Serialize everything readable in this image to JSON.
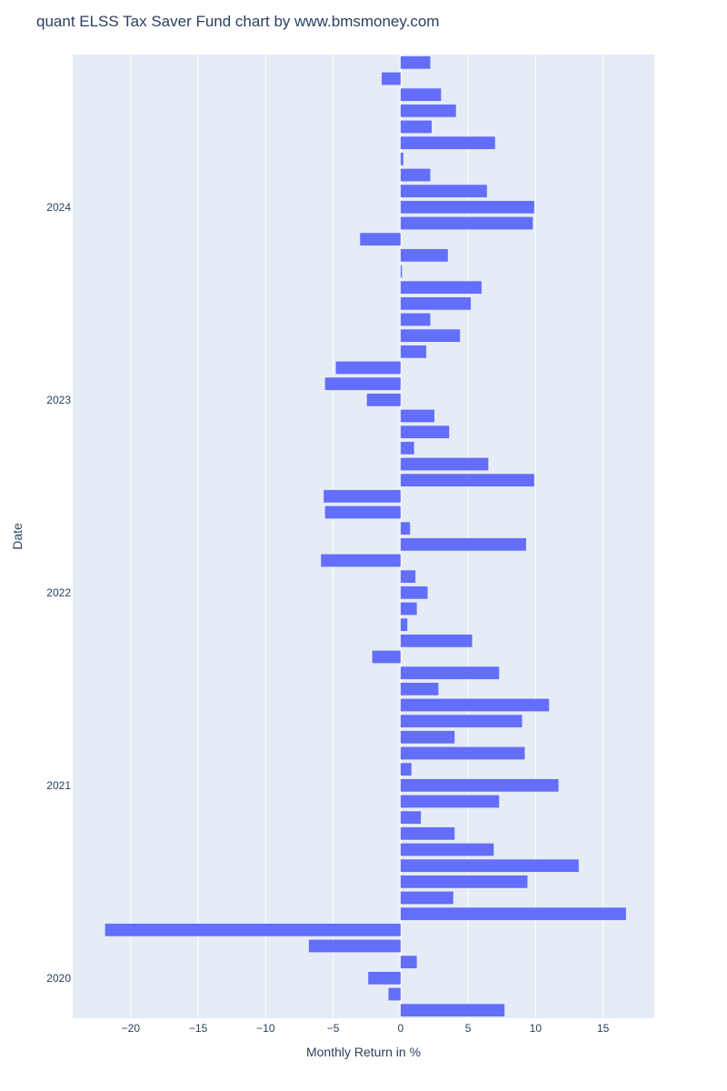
{
  "chart_data": {
    "type": "bar",
    "orientation": "horizontal",
    "title": "quant ELSS Tax Saver Fund  chart by www.bmsmoney.com",
    "xlabel": "Monthly Return in %",
    "ylabel": "Date",
    "xlim": [
      -24.3,
      18.8
    ],
    "x_ticks": [
      -20,
      -15,
      -10,
      -5,
      0,
      5,
      10,
      15
    ],
    "x_tick_labels": [
      "−20",
      "−15",
      "−10",
      "−5",
      "0",
      "5",
      "10",
      "15"
    ],
    "y_ticks": [
      "2020",
      "2021",
      "2022",
      "2023",
      "2024"
    ],
    "grid": true,
    "bar_color": "#636efa",
    "plot_bg": "#e5ecf6",
    "series": [
      {
        "name": "Monthly Return",
        "dates": [
          "2019-11",
          "2019-12",
          "2020-01",
          "2020-02",
          "2020-03",
          "2020-04",
          "2020-05",
          "2020-06",
          "2020-07",
          "2020-08",
          "2020-09",
          "2020-10",
          "2020-11",
          "2020-12",
          "2021-01",
          "2021-02",
          "2021-03",
          "2021-04",
          "2021-05",
          "2021-06",
          "2021-07",
          "2021-08",
          "2021-09",
          "2021-10",
          "2021-11",
          "2021-12",
          "2022-01",
          "2022-02",
          "2022-03",
          "2022-04",
          "2022-05",
          "2022-06",
          "2022-07",
          "2022-08",
          "2022-09",
          "2022-10",
          "2022-11",
          "2022-12",
          "2023-01",
          "2023-02",
          "2023-03",
          "2023-04",
          "2023-05",
          "2023-06",
          "2023-07",
          "2023-08",
          "2023-09",
          "2023-10",
          "2023-11",
          "2023-12",
          "2024-01",
          "2024-02",
          "2024-03",
          "2024-04",
          "2024-05",
          "2024-06",
          "2024-07",
          "2024-08",
          "2024-09",
          "2024-10"
        ],
        "values": [
          7.7,
          -0.9,
          -2.4,
          1.2,
          -6.8,
          -21.9,
          16.7,
          3.9,
          9.4,
          13.2,
          6.9,
          4.0,
          1.5,
          7.3,
          11.7,
          0.8,
          9.2,
          4.0,
          9.0,
          11.0,
          2.8,
          7.3,
          -2.1,
          5.3,
          0.5,
          1.2,
          2.0,
          1.1,
          -5.9,
          9.3,
          0.7,
          -5.6,
          -5.7,
          9.9,
          6.5,
          1.0,
          3.6,
          2.5,
          -2.5,
          -5.6,
          -4.8,
          1.9,
          4.4,
          2.2,
          5.2,
          6.0,
          0.1,
          3.5,
          -3.0,
          9.8,
          9.9,
          6.4,
          2.2,
          0.2,
          7.0,
          2.3,
          4.1,
          3.0,
          -1.4,
          2.2
        ]
      }
    ]
  }
}
